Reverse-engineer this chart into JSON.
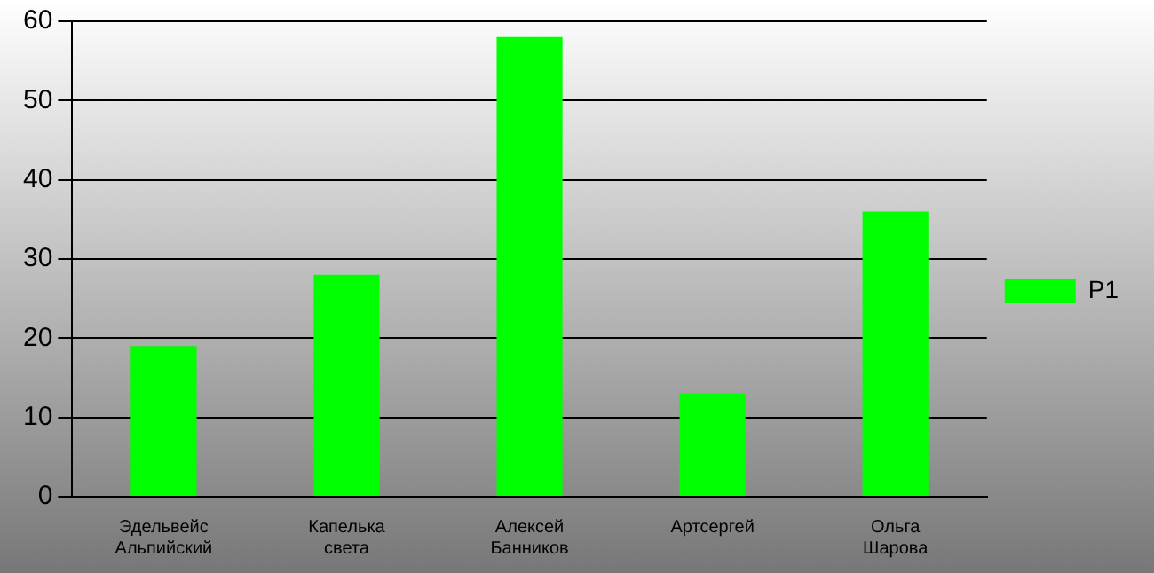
{
  "chart_data": {
    "type": "bar",
    "categories": [
      "Эдельвейс Альпийский",
      "Капелька света",
      "Алексей Банников",
      "Артсергей",
      "Ольга Шарова"
    ],
    "series": [
      {
        "name": "P1",
        "color": "#00ff00",
        "values": [
          19,
          28,
          58,
          13,
          36
        ]
      }
    ],
    "ylim": [
      0,
      60
    ],
    "yticks": [
      0,
      10,
      20,
      30,
      40,
      50,
      60
    ],
    "grid": "y",
    "legend": "right"
  }
}
